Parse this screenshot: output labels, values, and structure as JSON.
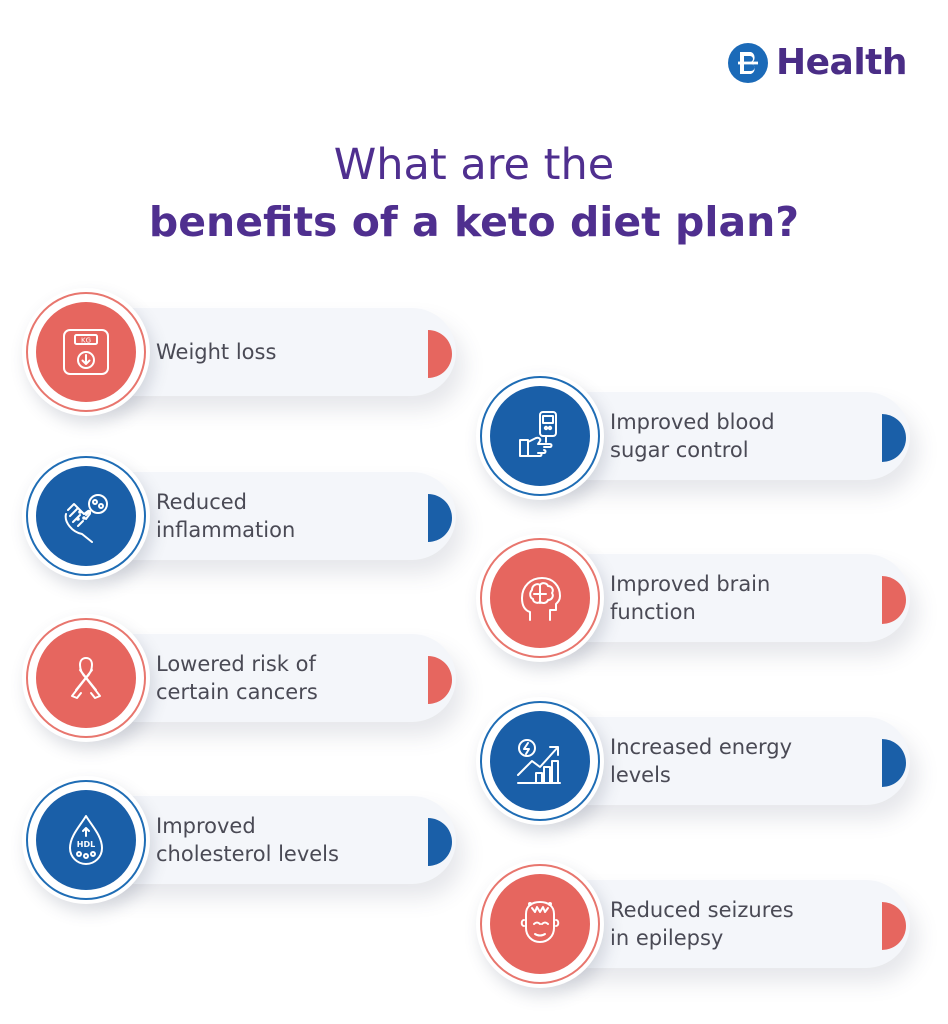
{
  "brand": {
    "name": "Health",
    "mark": "B",
    "color": "#1b6ab8",
    "text_color": "#4a2d86"
  },
  "title": {
    "line1": "What are the",
    "line2": "benefits of a keto diet plan?"
  },
  "colors": {
    "accent_red": "#e6665f",
    "accent_blue": "#1a5fa8",
    "title": "#4f2f8f"
  },
  "benefits_left": [
    {
      "label": "Weight loss",
      "icon": "weighing-scale-icon",
      "color": "red"
    },
    {
      "label": "Reduced\ninflammation",
      "icon": "inflamed-hand-icon",
      "color": "blue"
    },
    {
      "label": "Lowered risk of\ncertain cancers",
      "icon": "awareness-ribbon-icon",
      "color": "red"
    },
    {
      "label": "Improved\ncholesterol levels",
      "icon": "hdl-drop-icon",
      "color": "blue"
    }
  ],
  "benefits_right": [
    {
      "label": "Improved blood\nsugar control",
      "icon": "glucometer-icon",
      "color": "blue"
    },
    {
      "label": "Improved brain\nfunction",
      "icon": "brain-head-icon",
      "color": "red"
    },
    {
      "label": "Increased energy\nlevels",
      "icon": "energy-growth-icon",
      "color": "blue"
    },
    {
      "label": "Reduced seizures\nin epilepsy",
      "icon": "seizure-head-icon",
      "color": "red"
    }
  ]
}
